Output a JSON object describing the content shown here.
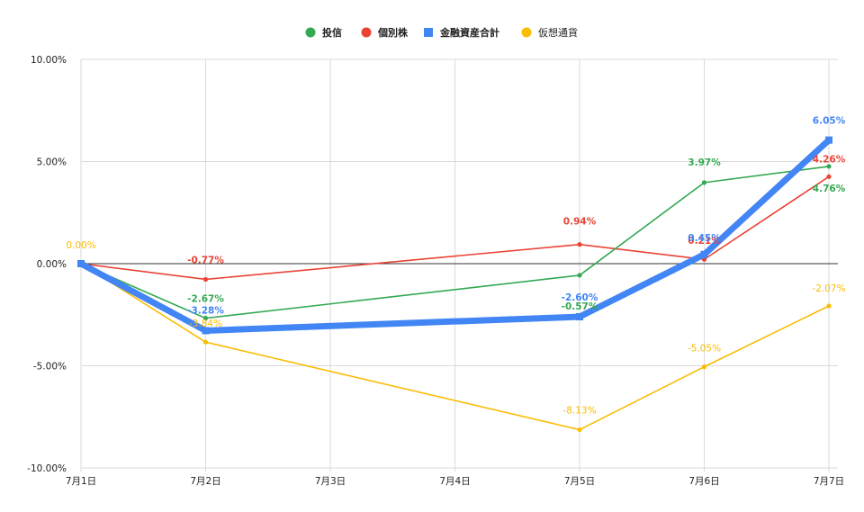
{
  "chart_data": {
    "type": "line",
    "title": "",
    "xlabel": "",
    "ylabel": "",
    "x": [
      "7月1日",
      "7月2日",
      "7月3日",
      "7月4日",
      "7月5日",
      "7月6日",
      "7月7日"
    ],
    "ylim": [
      -10,
      10
    ],
    "y_ticks": [
      10,
      5,
      0,
      -5,
      -10
    ],
    "y_tick_labels": [
      "10.00%",
      "5.00%",
      "0.00%",
      "-5.00%",
      "-10.00%"
    ],
    "grid": true,
    "legend_position": "top",
    "series": [
      {
        "name": "投信",
        "color": "#34a853",
        "marker": "circle",
        "points": [
          [
            0,
            0.0
          ],
          [
            1,
            -2.67
          ],
          [
            4,
            -0.57
          ],
          [
            5,
            3.97
          ],
          [
            6,
            4.76
          ]
        ],
        "labels": [
          "",
          "-2.67%",
          "-0.57%",
          "3.97%",
          "4.76%"
        ]
      },
      {
        "name": "個別株",
        "color": "#ea4335",
        "marker": "circle",
        "points": [
          [
            0,
            0.0
          ],
          [
            1,
            -0.77
          ],
          [
            4,
            0.94
          ],
          [
            5,
            0.21
          ],
          [
            6,
            4.26
          ]
        ],
        "labels": [
          "",
          "-0.77%",
          "0.94%",
          "0.21%",
          "4.26%"
        ]
      },
      {
        "name": "金融資産合計",
        "color": "#4285f4",
        "marker": "square",
        "points": [
          [
            0,
            0.0
          ],
          [
            1,
            -3.28
          ],
          [
            4,
            -2.6
          ],
          [
            5,
            0.45
          ],
          [
            6,
            6.05
          ]
        ],
        "labels": [
          "",
          "-3.28%",
          "-2.60%",
          "0.45%",
          "6.05%"
        ]
      },
      {
        "name": "仮想通貨",
        "color": "#fbbc04",
        "marker": "circle",
        "points": [
          [
            0,
            0.0
          ],
          [
            1,
            -3.84
          ],
          [
            4,
            -8.13
          ],
          [
            5,
            -5.05
          ],
          [
            6,
            -2.07
          ]
        ],
        "labels": [
          "0.00%",
          "-3.84%",
          "-8.13%",
          "-5.05%",
          "-2.07%"
        ]
      }
    ]
  }
}
